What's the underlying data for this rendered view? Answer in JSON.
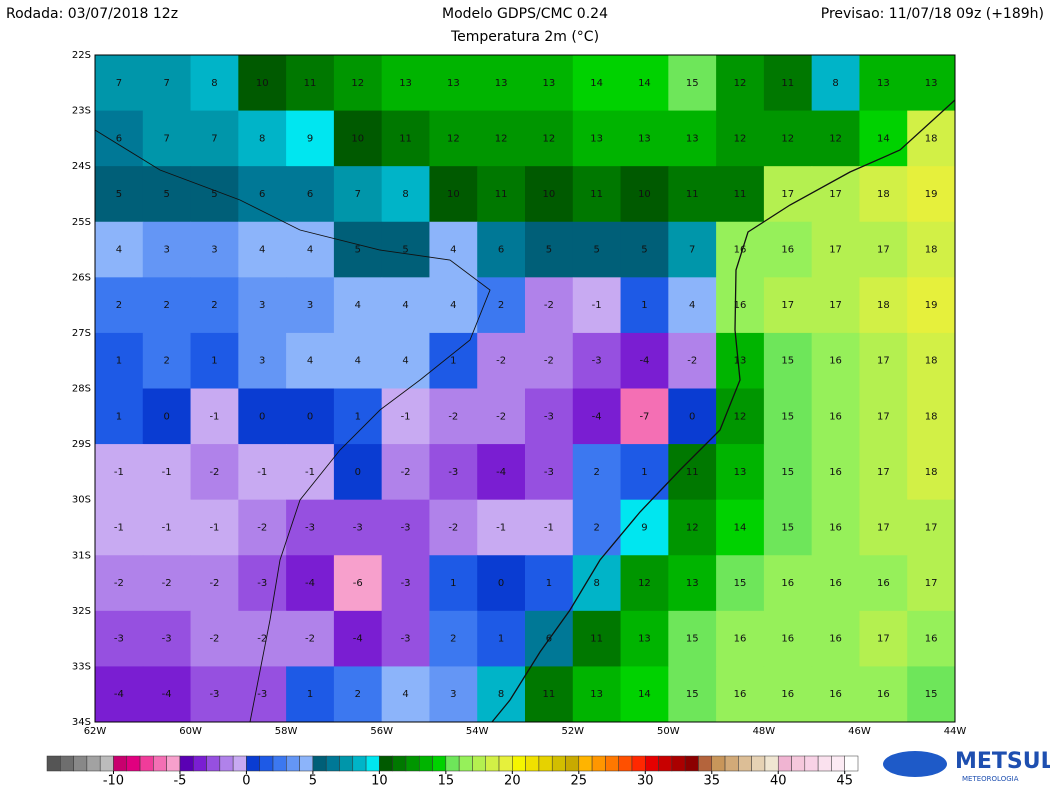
{
  "header": {
    "left": "Rodada: 03/07/2018 12z",
    "title": "Modelo GDPS/CMC 0.24",
    "subtitle": "Temperatura 2m (°C)",
    "right": "Previsao: 11/07/18 09z (+189h)"
  },
  "map": {
    "lat_labels": [
      "22S",
      "23S",
      "24S",
      "25S",
      "26S",
      "27S",
      "28S",
      "29S",
      "30S",
      "31S",
      "32S",
      "33S",
      "34S"
    ],
    "lon_labels": [
      "62W",
      "60W",
      "58W",
      "56W",
      "54W",
      "52W",
      "50W",
      "48W",
      "46W",
      "44W"
    ],
    "grid": [
      [
        7,
        7,
        8,
        10,
        11,
        12,
        13,
        13,
        13,
        13,
        14,
        14,
        15,
        12,
        11,
        8,
        13,
        13
      ],
      [
        6,
        7,
        7,
        8,
        9,
        10,
        11,
        12,
        12,
        12,
        13,
        13,
        13,
        12,
        12,
        12,
        14,
        18
      ],
      [
        5,
        5,
        5,
        6,
        6,
        7,
        8,
        10,
        11,
        10,
        11,
        10,
        11,
        11,
        17,
        17,
        18,
        19
      ],
      [
        4,
        3,
        3,
        4,
        4,
        5,
        5,
        4,
        6,
        5,
        5,
        5,
        7,
        16,
        16,
        17,
        17,
        18
      ],
      [
        2,
        2,
        2,
        3,
        3,
        4,
        4,
        4,
        2,
        -2,
        -1,
        1,
        4,
        16,
        17,
        17,
        18,
        19
      ],
      [
        1,
        2,
        1,
        3,
        4,
        4,
        4,
        1,
        -2,
        -2,
        -3,
        -4,
        -2,
        13,
        15,
        16,
        17,
        18
      ],
      [
        1,
        0,
        -1,
        0,
        0,
        1,
        -1,
        -2,
        -2,
        -3,
        -4,
        -7,
        0,
        12,
        15,
        16,
        17,
        18
      ],
      [
        -1,
        -1,
        -2,
        -1,
        -1,
        0,
        -2,
        -3,
        -4,
        -3,
        2,
        1,
        11,
        13,
        15,
        16,
        17,
        18
      ],
      [
        -1,
        -1,
        -1,
        -2,
        -3,
        -3,
        -3,
        -2,
        -1,
        -1,
        2,
        9,
        12,
        14,
        15,
        16,
        17,
        17
      ],
      [
        -2,
        -2,
        -2,
        -3,
        -4,
        -6,
        -3,
        1,
        0,
        1,
        8,
        12,
        13,
        15,
        16,
        16,
        16,
        17
      ],
      [
        -3,
        -3,
        -2,
        -2,
        -2,
        -4,
        -3,
        2,
        1,
        6,
        11,
        13,
        15,
        16,
        16,
        16,
        17,
        16
      ],
      [
        -4,
        -4,
        -3,
        -3,
        1,
        2,
        4,
        3,
        8,
        11,
        13,
        14,
        15,
        16,
        16,
        16,
        16,
        15
      ]
    ]
  },
  "colorbar": {
    "lim": [
      -15,
      46
    ],
    "ticks": [
      -10,
      -5,
      0,
      5,
      10,
      15,
      20,
      25,
      30,
      35,
      40,
      45
    ],
    "colors": [
      "#555555",
      "#6e6e6e",
      "#888888",
      "#a2a2a2",
      "#bcbcbc",
      "#c8006e",
      "#e0007f",
      "#f03c9a",
      "#f46fb4",
      "#f7a0cc",
      "#5a00b4",
      "#7a1ed2",
      "#9650e0",
      "#b082ea",
      "#c8aaf2",
      "#0a3cd2",
      "#1e5ae6",
      "#3c78f0",
      "#6496f5",
      "#8cb4fa",
      "#005f78",
      "#007896",
      "#0096aa",
      "#00b4c8",
      "#00e6f0",
      "#005a00",
      "#007800",
      "#009600",
      "#00b400",
      "#00d200",
      "#6ee65a",
      "#96f05a",
      "#b4f050",
      "#d2f046",
      "#e6f03c",
      "#f5f500",
      "#f0e100",
      "#e6d200",
      "#d2be00",
      "#c8aa00",
      "#ffb400",
      "#ff9600",
      "#ff7800",
      "#ff5000",
      "#ff2800",
      "#e60000",
      "#c80000",
      "#aa0000",
      "#8c0000",
      "#b4643c",
      "#c8965a",
      "#d2aa78",
      "#dcbe96",
      "#e6d2b4",
      "#f0e6d2",
      "#f0b4d2",
      "#f5c8dc",
      "#f8d2e6",
      "#fae1ee",
      "#fcebf4",
      "#ffffff"
    ]
  },
  "logo": {
    "name": "METSUL",
    "tagline": "METEOROLOGIA"
  }
}
